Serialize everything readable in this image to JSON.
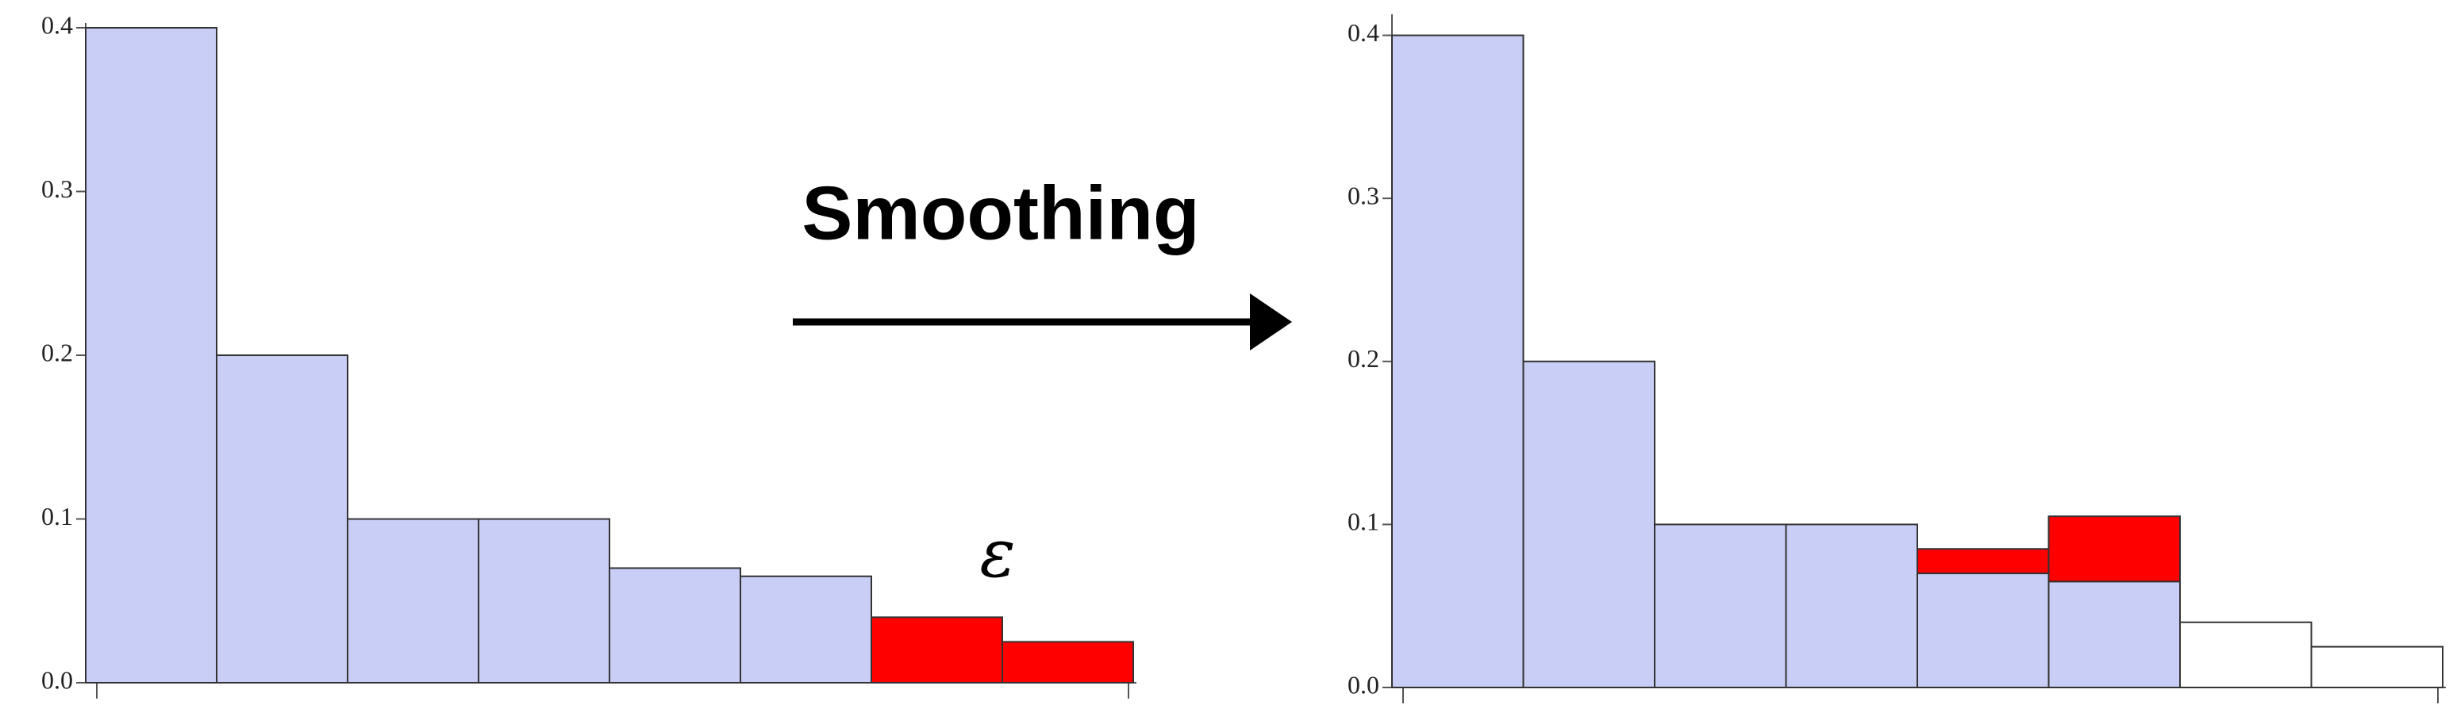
{
  "arrow_label": "Smoothing",
  "chart_data": [
    {
      "type": "bar",
      "stacked": true,
      "annotation": "ε",
      "categories": [
        null,
        null,
        null,
        null,
        null,
        null,
        null,
        null
      ],
      "series": [
        {
          "color": "#c8cef5",
          "values": [
            0.4,
            0.2,
            0.1,
            0.1,
            0.07,
            0.065,
            null,
            null
          ]
        },
        {
          "color": "#ff0000",
          "values": [
            null,
            null,
            null,
            null,
            null,
            null,
            0.04,
            0.025
          ]
        }
      ],
      "ylim": [
        0,
        0.4
      ],
      "yticks": [
        {
          "value": 0,
          "label": "0.0"
        },
        0.1,
        0.2,
        0.3,
        0.4
      ]
    },
    {
      "type": "bar",
      "stacked": true,
      "categories": [
        null,
        null,
        null,
        null,
        null,
        null,
        null,
        null
      ],
      "series": [
        {
          "color": "#c8cef5",
          "values": [
            0.4,
            0.2,
            0.1,
            0.1,
            0.07,
            0.065,
            null,
            null
          ]
        },
        {
          "color": "#ff0000",
          "values": [
            null,
            null,
            null,
            null,
            0.015,
            0.04,
            null,
            null
          ]
        },
        {
          "color": "#ffffff",
          "values": [
            null,
            null,
            null,
            null,
            null,
            null,
            0.04,
            0.025
          ]
        }
      ],
      "ylim": [
        0,
        0.41
      ],
      "yticks": [
        {
          "value": 0,
          "label": "0.0"
        },
        0.1,
        0.2,
        0.3,
        0.4
      ]
    }
  ]
}
